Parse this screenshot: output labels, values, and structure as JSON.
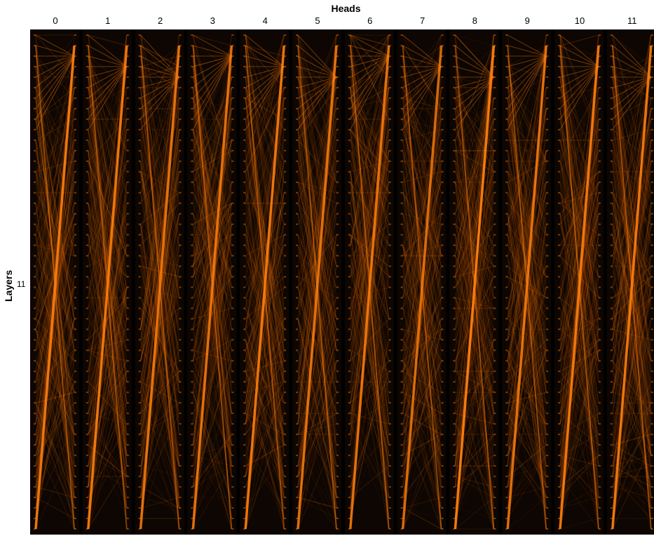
{
  "chart_data": {
    "type": "heatmap",
    "title": "Heads",
    "xlabel": "Heads",
    "ylabel": "Layers",
    "heads": [
      "0",
      "1",
      "2",
      "3",
      "4",
      "5",
      "6",
      "7",
      "8",
      "9",
      "10",
      "11"
    ],
    "layers": [
      "11"
    ],
    "series": [
      {
        "head": 0,
        "dominant_pattern": "previous-token",
        "strength": 0.9
      },
      {
        "head": 1,
        "dominant_pattern": "previous-token",
        "strength": 0.9
      },
      {
        "head": 2,
        "dominant_pattern": "previous-token",
        "strength": 0.85
      },
      {
        "head": 3,
        "dominant_pattern": "previous-token",
        "strength": 0.85
      },
      {
        "head": 4,
        "dominant_pattern": "previous-token",
        "strength": 0.9
      },
      {
        "head": 5,
        "dominant_pattern": "previous-token",
        "strength": 0.85
      },
      {
        "head": 6,
        "dominant_pattern": "previous-token",
        "strength": 0.85
      },
      {
        "head": 7,
        "dominant_pattern": "previous-token",
        "strength": 0.8
      },
      {
        "head": 8,
        "dominant_pattern": "previous-token",
        "strength": 0.95
      },
      {
        "head": 9,
        "dominant_pattern": "previous-token",
        "strength": 0.85
      },
      {
        "head": 10,
        "dominant_pattern": "previous-token",
        "strength": 0.9
      },
      {
        "head": 11,
        "dominant_pattern": "previous-token",
        "strength": 0.9
      }
    ],
    "colors": {
      "background": "#000000",
      "line": "#ff7f0e",
      "line_dark": "#c04a00",
      "page": "#ffffff"
    },
    "grid": false,
    "legend": "none"
  }
}
